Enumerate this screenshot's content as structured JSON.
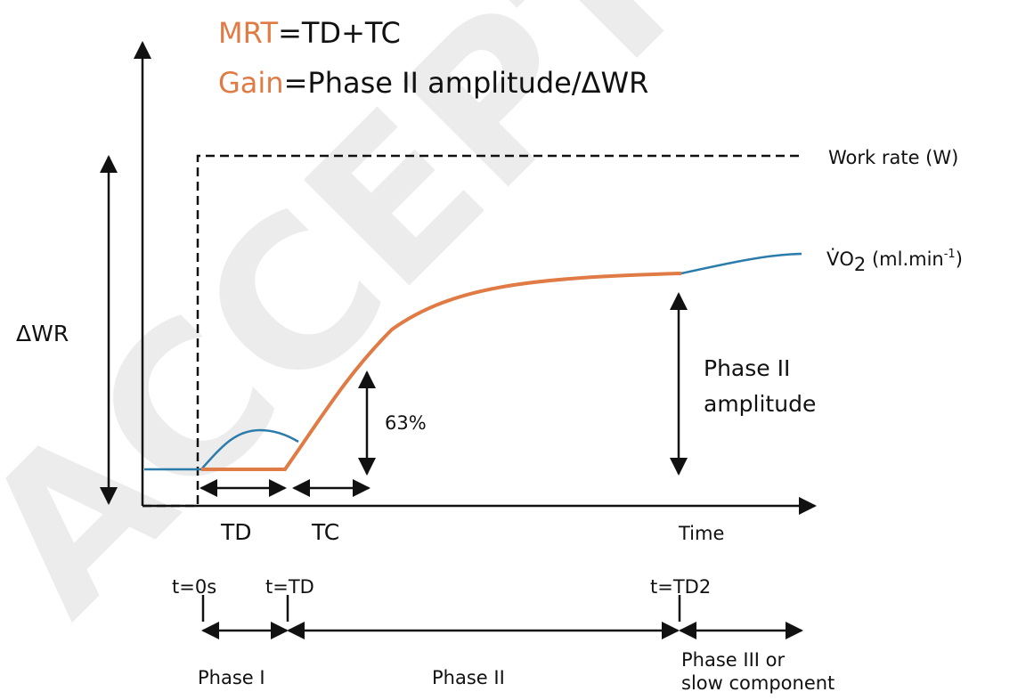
{
  "watermark": "ACCEPTED",
  "formulas": [
    {
      "term": "MRT",
      "rest": "=TD+TC"
    },
    {
      "term": "Gain",
      "rest": "=Phase II amplitude/ΔWR"
    }
  ],
  "labels": {
    "work_rate": "Work rate (W)",
    "delta_wr": "ΔWR",
    "pct": "63%",
    "amplitude": [
      "Phase II",
      "amplitude"
    ],
    "td": "TD",
    "tc": "TC",
    "time": "Time"
  },
  "vo2_label": {
    "main": "V̇O",
    "sub": "2",
    "unit": " (ml.min",
    "sup": "-1",
    "close": ")"
  },
  "timeline": {
    "marks": [
      "t=0s",
      "t=TD",
      "t=TD2"
    ],
    "phases": [
      "Phase I",
      "Phase II"
    ],
    "phase3": [
      "Phase III or",
      "slow component"
    ]
  }
}
